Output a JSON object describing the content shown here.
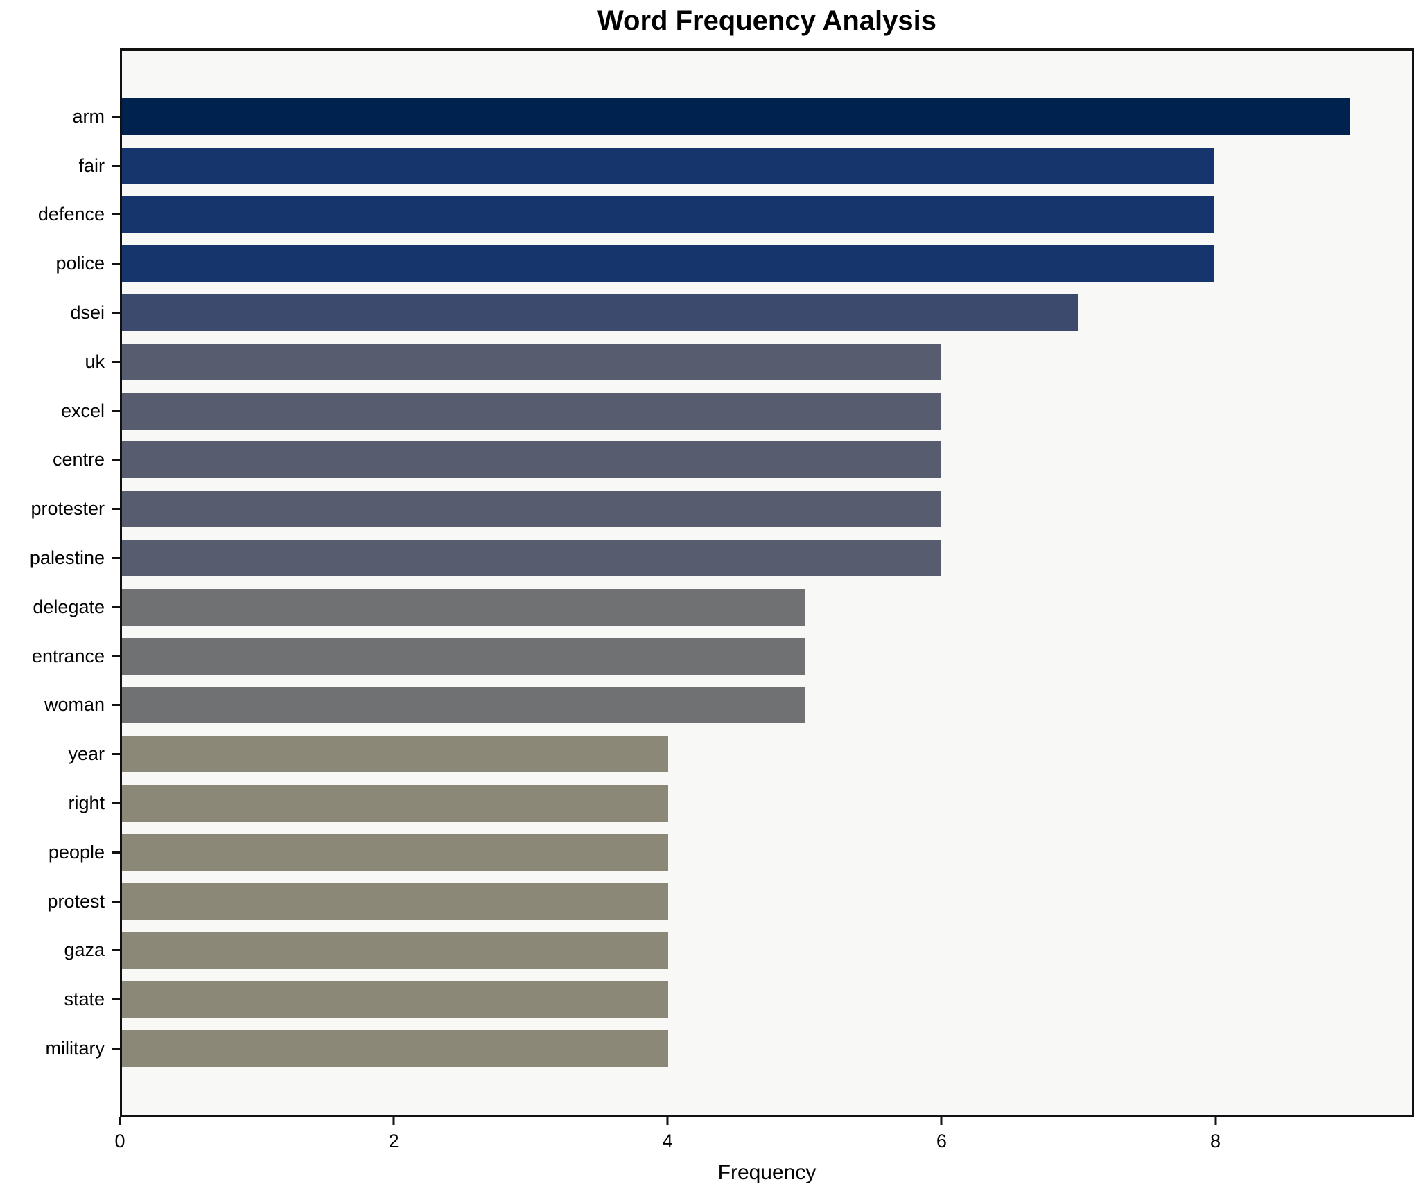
{
  "chart_data": {
    "type": "bar",
    "orientation": "horizontal",
    "title": "Word Frequency Analysis",
    "xlabel": "Frequency",
    "ylabel": "",
    "categories": [
      "arm",
      "fair",
      "defence",
      "police",
      "dsei",
      "uk",
      "excel",
      "centre",
      "protester",
      "palestine",
      "delegate",
      "entrance",
      "woman",
      "year",
      "right",
      "people",
      "protest",
      "gaza",
      "state",
      "military"
    ],
    "values": [
      9,
      8,
      8,
      8,
      7,
      6,
      6,
      6,
      6,
      6,
      5,
      5,
      5,
      4,
      4,
      4,
      4,
      4,
      4,
      4
    ],
    "bar_colors": [
      "#00224e",
      "#15356c",
      "#15356c",
      "#15356c",
      "#3c4a6d",
      "#575d6f",
      "#575d6f",
      "#575d6f",
      "#575d6f",
      "#575d6f",
      "#707173",
      "#707173",
      "#707173",
      "#8b8878",
      "#8b8878",
      "#8b8878",
      "#8b8878",
      "#8b8878",
      "#8b8878",
      "#8b8878"
    ],
    "xlim": [
      0,
      9.45
    ],
    "xticks": [
      0,
      2,
      4,
      6,
      8
    ],
    "grid": false,
    "legend": null,
    "plot_bg": "#f8f8f7",
    "spine_color": "#111111"
  }
}
